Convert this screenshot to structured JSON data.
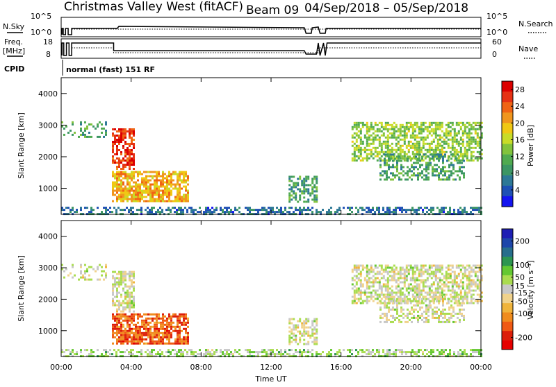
{
  "header": {
    "station": "Christmas Valley West (fitACF)",
    "beam": "Beam 09",
    "date_range": "04/Sep/2018 – 05/Sep/2018"
  },
  "panels": {
    "nsky_label": "N.Sky",
    "nsearch_label": "N.Search",
    "nsearch_line": "dotted",
    "freq_label_1": "Freq.",
    "freq_label_2": "[MHz]",
    "nave_label": "Nave",
    "nave_line": "dotted",
    "cpid_label": "CPID",
    "cpid_text": "normal (fast) 151 RF",
    "noise_ticks": [
      "10^5",
      "10^0"
    ],
    "freq_ticks": [
      "18",
      "8"
    ],
    "nave_ticks": [
      "60",
      "0"
    ]
  },
  "colors": {
    "power": [
      "#1414f0",
      "#1e50b4",
      "#2d7896",
      "#3c9664",
      "#50aa50",
      "#82c33c",
      "#c8dc28",
      "#f0c814",
      "#f0961e",
      "#f06414",
      "#e63214",
      "#dc0000"
    ],
    "velocity": [
      "#1e1eb4",
      "#1e46aa",
      "#286e8c",
      "#2d9650",
      "#64c832",
      "#aadc50",
      "#c8c8c8",
      "#f0d28c",
      "#f0b43c",
      "#f08c1e",
      "#f05a14",
      "#dc1e0a",
      "#e60000"
    ]
  },
  "chart_data": [
    {
      "type": "heatmap",
      "parameter": "Power",
      "ylabel": "Slant Range [km]",
      "xlabel": "",
      "x_ticks": [
        "00:00",
        "04:00",
        "08:00",
        "12:00",
        "16:00",
        "20:00",
        "00:00"
      ],
      "y_ticks": [
        1000,
        2000,
        3000,
        4000
      ],
      "xlim_hours": [
        0,
        24
      ],
      "ylim_km": [
        180,
        4500
      ],
      "colorbar": {
        "label": "Power [dB]",
        "ticks": [
          4,
          8,
          12,
          16,
          20,
          24,
          28
        ],
        "range": [
          0,
          30
        ]
      },
      "echo_regions": [
        {
          "t0": 0.0,
          "t1": 2.6,
          "r0": 2600,
          "r1": 3120,
          "value": 10,
          "density": 0.25
        },
        {
          "t0": 2.9,
          "t1": 4.2,
          "r0": 1600,
          "r1": 2900,
          "value": 26,
          "density": 0.7
        },
        {
          "t0": 2.9,
          "t1": 7.2,
          "r0": 600,
          "r1": 1550,
          "value": 20,
          "density": 0.75
        },
        {
          "t0": 0.0,
          "t1": 24.0,
          "r0": 200,
          "r1": 420,
          "value": 6,
          "density": 0.55
        },
        {
          "t0": 13.0,
          "t1": 14.6,
          "r0": 600,
          "r1": 1400,
          "value": 10,
          "density": 0.5
        },
        {
          "t0": 16.6,
          "t1": 24.0,
          "r0": 1900,
          "r1": 3100,
          "value": 14,
          "density": 0.6
        },
        {
          "t0": 18.2,
          "t1": 23.0,
          "r0": 1300,
          "r1": 2100,
          "value": 10,
          "density": 0.5
        }
      ]
    },
    {
      "type": "heatmap",
      "parameter": "Velocity",
      "ylabel": "Slant Range [km]",
      "xlabel": "Time UT",
      "x_ticks": [
        "00:00",
        "04:00",
        "08:00",
        "12:00",
        "16:00",
        "20:00",
        "00:00"
      ],
      "y_ticks": [
        1000,
        2000,
        3000,
        4000
      ],
      "xlim_hours": [
        0,
        24
      ],
      "ylim_km": [
        180,
        4500
      ],
      "colorbar": {
        "label": "Velocity [m s⁻¹]",
        "ticks": [
          200,
          100,
          50,
          15,
          -15,
          -50,
          -100,
          -200
        ],
        "range": [
          -250,
          250
        ]
      },
      "echo_regions": [
        {
          "t0": 0.0,
          "t1": 2.6,
          "r0": 2600,
          "r1": 3120,
          "value": 0,
          "density": 0.25
        },
        {
          "t0": 2.9,
          "t1": 4.2,
          "r0": 1600,
          "r1": 2900,
          "value": 0,
          "density": 0.7
        },
        {
          "t0": 2.9,
          "t1": 7.2,
          "r0": 600,
          "r1": 1550,
          "value": -150,
          "density": 0.75
        },
        {
          "t0": 0.0,
          "t1": 24.0,
          "r0": 200,
          "r1": 420,
          "value": 40,
          "density": 0.55
        },
        {
          "t0": 13.0,
          "t1": 14.6,
          "r0": 600,
          "r1": 1400,
          "value": 0,
          "density": 0.5
        },
        {
          "t0": 16.6,
          "t1": 24.0,
          "r0": 1900,
          "r1": 3100,
          "value": 0,
          "density": 0.6
        },
        {
          "t0": 18.2,
          "t1": 23.0,
          "r0": 1300,
          "r1": 2100,
          "value": 0,
          "density": 0.5
        }
      ]
    }
  ]
}
